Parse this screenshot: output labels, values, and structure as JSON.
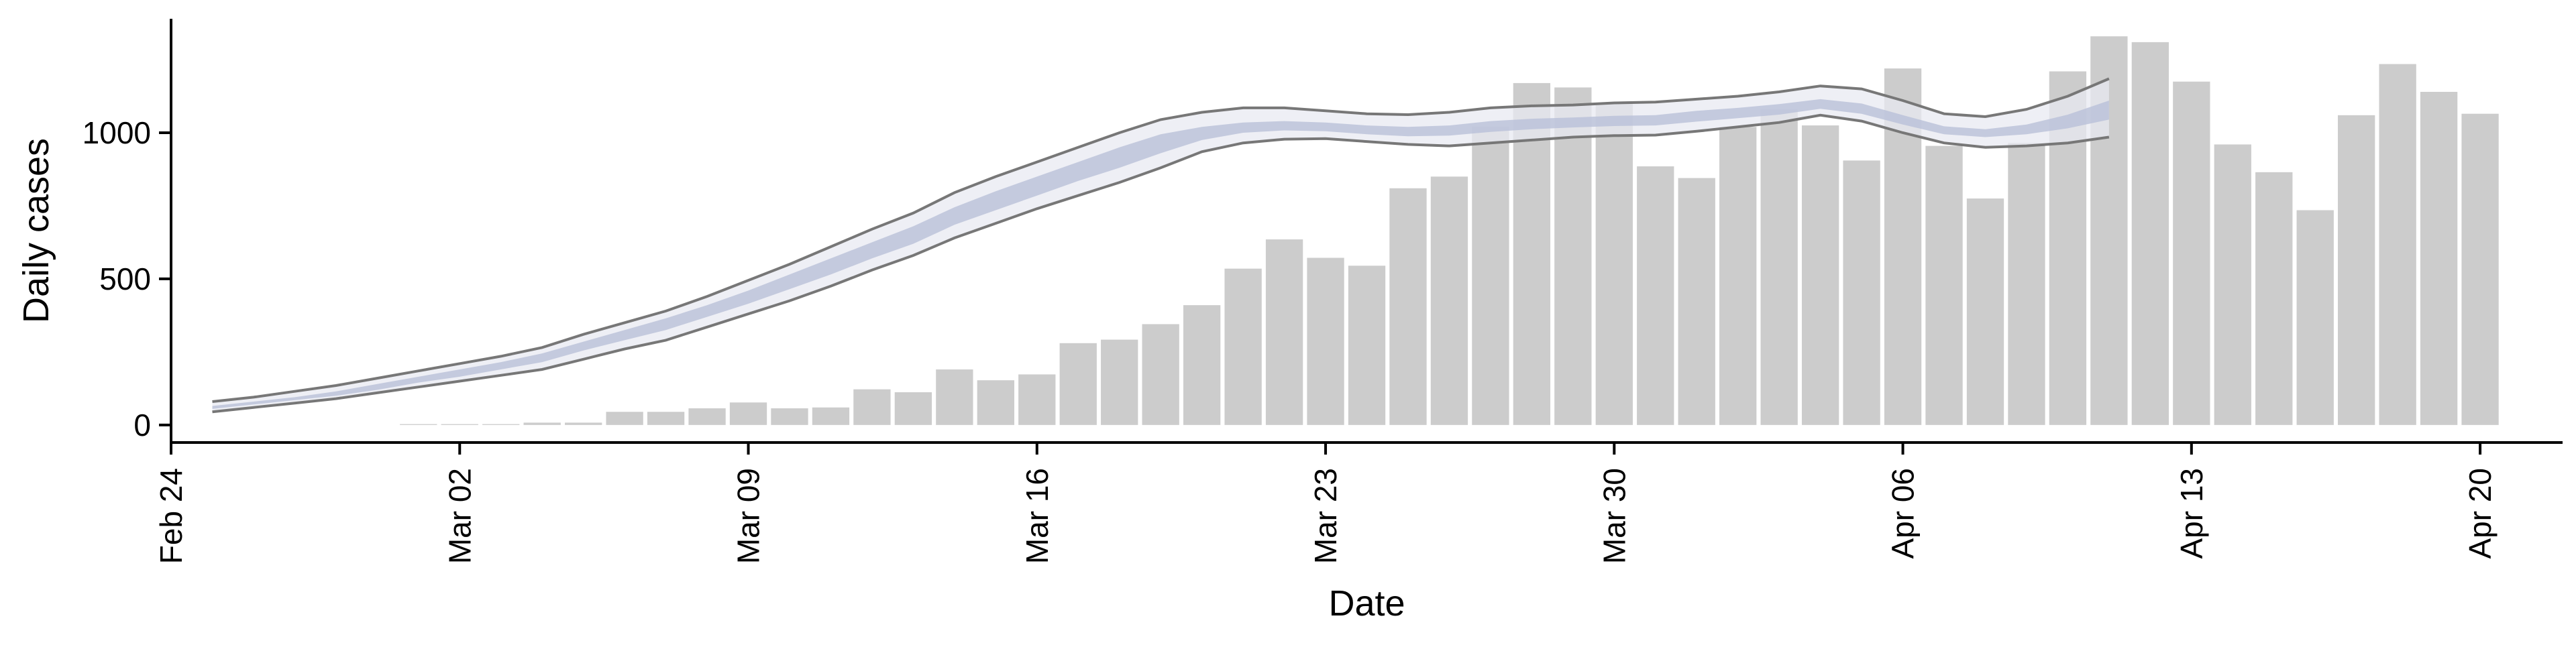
{
  "chart_data": {
    "type": "bar",
    "xlabel": "Date",
    "ylabel": "Daily cases",
    "ylim": [
      -60,
      1390
    ],
    "xlim": [
      "2020-02-24",
      "2020-04-22"
    ],
    "grid": false,
    "legend": "none",
    "y_ticks": [
      0,
      500,
      1000
    ],
    "x_ticks": [
      {
        "date": "2020-02-24",
        "label": "Feb 24"
      },
      {
        "date": "2020-03-02",
        "label": "Mar 02"
      },
      {
        "date": "2020-03-09",
        "label": "Mar 09"
      },
      {
        "date": "2020-03-16",
        "label": "Mar 16"
      },
      {
        "date": "2020-03-23",
        "label": "Mar 23"
      },
      {
        "date": "2020-03-30",
        "label": "Mar 30"
      },
      {
        "date": "2020-04-06",
        "label": "Apr 06"
      },
      {
        "date": "2020-04-13",
        "label": "Apr 13"
      },
      {
        "date": "2020-04-20",
        "label": "Apr 20"
      }
    ],
    "bars": {
      "color": "#cccccc",
      "dates": [
        "2020-03-01",
        "2020-03-02",
        "2020-03-03",
        "2020-03-04",
        "2020-03-05",
        "2020-03-06",
        "2020-03-07",
        "2020-03-08",
        "2020-03-09",
        "2020-03-10",
        "2020-03-11",
        "2020-03-12",
        "2020-03-13",
        "2020-03-14",
        "2020-03-15",
        "2020-03-16",
        "2020-03-17",
        "2020-03-18",
        "2020-03-19",
        "2020-03-20",
        "2020-03-21",
        "2020-03-22",
        "2020-03-23",
        "2020-03-24",
        "2020-03-25",
        "2020-03-26",
        "2020-03-27",
        "2020-03-28",
        "2020-03-29",
        "2020-03-30",
        "2020-03-31",
        "2020-04-01",
        "2020-04-02",
        "2020-04-03",
        "2020-04-04",
        "2020-04-05",
        "2020-04-06",
        "2020-04-07",
        "2020-04-08",
        "2020-04-09",
        "2020-04-10",
        "2020-04-11",
        "2020-04-12",
        "2020-04-13",
        "2020-04-14",
        "2020-04-15",
        "2020-04-16",
        "2020-04-17",
        "2020-04-18",
        "2020-04-19",
        "2020-04-20"
      ],
      "values": [
        3,
        3,
        3,
        8,
        8,
        45,
        45,
        57,
        77,
        57,
        60,
        122,
        112,
        190,
        153,
        173,
        280,
        292,
        345,
        410,
        535,
        635,
        572,
        545,
        810,
        850,
        1020,
        1170,
        1155,
        1100,
        885,
        845,
        1020,
        1080,
        1025,
        905,
        1220,
        955,
        775,
        965,
        1210,
        1330,
        1310,
        1175,
        960,
        865,
        735,
        1060,
        1235,
        1140,
        1065
      ]
    },
    "estimate": {
      "band_color": "#e8e9f2",
      "band_edge_color": "#777777",
      "inner_color": "#b9c0d8",
      "dates": [
        "2020-02-25",
        "2020-02-26",
        "2020-02-27",
        "2020-02-28",
        "2020-02-29",
        "2020-03-01",
        "2020-03-02",
        "2020-03-03",
        "2020-03-04",
        "2020-03-05",
        "2020-03-06",
        "2020-03-07",
        "2020-03-08",
        "2020-03-09",
        "2020-03-10",
        "2020-03-11",
        "2020-03-12",
        "2020-03-13",
        "2020-03-14",
        "2020-03-15",
        "2020-03-16",
        "2020-03-17",
        "2020-03-18",
        "2020-03-19",
        "2020-03-20",
        "2020-03-21",
        "2020-03-22",
        "2020-03-23",
        "2020-03-24",
        "2020-03-25",
        "2020-03-26",
        "2020-03-27",
        "2020-03-28",
        "2020-03-29",
        "2020-03-30",
        "2020-03-31",
        "2020-04-01",
        "2020-04-02",
        "2020-04-03",
        "2020-04-04",
        "2020-04-05",
        "2020-04-06",
        "2020-04-07",
        "2020-04-08",
        "2020-04-09",
        "2020-04-10",
        "2020-04-11"
      ],
      "upper": [
        80,
        95,
        115,
        135,
        160,
        185,
        210,
        235,
        265,
        310,
        350,
        390,
        440,
        495,
        550,
        610,
        670,
        725,
        795,
        850,
        900,
        950,
        1000,
        1045,
        1070,
        1085,
        1085,
        1075,
        1065,
        1062,
        1070,
        1085,
        1092,
        1095,
        1102,
        1105,
        1115,
        1125,
        1140,
        1160,
        1150,
        1110,
        1065,
        1055,
        1080,
        1125,
        1185
      ],
      "lower": [
        45,
        60,
        75,
        90,
        110,
        130,
        150,
        170,
        190,
        225,
        260,
        290,
        335,
        380,
        425,
        475,
        530,
        580,
        640,
        690,
        740,
        785,
        830,
        880,
        935,
        965,
        978,
        980,
        970,
        960,
        955,
        965,
        975,
        985,
        990,
        992,
        1005,
        1020,
        1035,
        1060,
        1040,
        1000,
        965,
        950,
        955,
        965,
        985
      ],
      "inner_upper": [
        65,
        80,
        95,
        115,
        140,
        165,
        190,
        215,
        245,
        285,
        325,
        365,
        410,
        460,
        515,
        570,
        625,
        680,
        745,
        800,
        850,
        900,
        950,
        995,
        1020,
        1035,
        1040,
        1035,
        1025,
        1020,
        1025,
        1040,
        1048,
        1052,
        1058,
        1060,
        1075,
        1085,
        1098,
        1115,
        1100,
        1060,
        1022,
        1012,
        1028,
        1062,
        1110
      ],
      "inner_lower": [
        55,
        70,
        85,
        100,
        120,
        145,
        165,
        190,
        215,
        255,
        290,
        325,
        370,
        415,
        465,
        515,
        570,
        620,
        685,
        735,
        785,
        835,
        880,
        930,
        975,
        1000,
        1008,
        1005,
        995,
        988,
        990,
        1003,
        1012,
        1018,
        1023,
        1025,
        1038,
        1050,
        1062,
        1082,
        1065,
        1028,
        995,
        985,
        995,
        1015,
        1045
      ]
    }
  }
}
